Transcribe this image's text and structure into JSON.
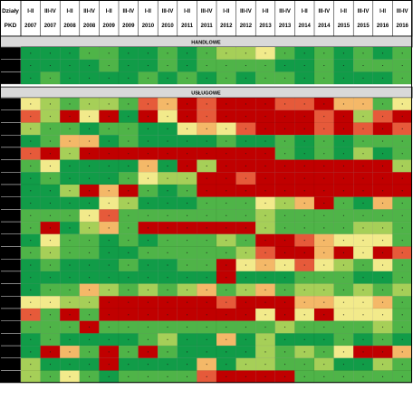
{
  "chart_data": {
    "type": "heatmap",
    "corner_label": [
      "Działy",
      "PKD"
    ],
    "columns": [
      {
        "period": "I-II",
        "year": "2007"
      },
      {
        "period": "III-IV",
        "year": "2007"
      },
      {
        "period": "I-II",
        "year": "2008"
      },
      {
        "period": "III-IV",
        "year": "2008"
      },
      {
        "period": "I-II",
        "year": "2009"
      },
      {
        "period": "III-IV",
        "year": "2009"
      },
      {
        "period": "I-II",
        "year": "2010"
      },
      {
        "period": "III-IV",
        "year": "2010"
      },
      {
        "period": "I-II",
        "year": "2011"
      },
      {
        "period": "III-IV",
        "year": "2011"
      },
      {
        "period": "I-II",
        "year": "2012"
      },
      {
        "period": "III-IV",
        "year": "2012"
      },
      {
        "period": "I-II",
        "year": "2013"
      },
      {
        "period": "III-IV",
        "year": "2013"
      },
      {
        "period": "I-II",
        "year": "2014"
      },
      {
        "period": "III-IV",
        "year": "2014"
      },
      {
        "period": "I-II",
        "year": "2015"
      },
      {
        "period": "III-IV",
        "year": "2015"
      },
      {
        "period": "I-II",
        "year": "2016"
      },
      {
        "period": "III-IV",
        "year": "2016"
      }
    ],
    "color_scale": {
      "levels": [
        0,
        1,
        2,
        3,
        4,
        5,
        6
      ],
      "colors": [
        "#119c48",
        "#4fb448",
        "#a6cf58",
        "#f2ea8b",
        "#f4b868",
        "#e65a3a",
        "#c00000"
      ]
    },
    "sections": [
      {
        "title": "HANDLOWE",
        "rows": [
          [
            0,
            0,
            0,
            1,
            1,
            0,
            0,
            1,
            0,
            1,
            2,
            2,
            3,
            1,
            0,
            1,
            0,
            1,
            0,
            1
          ],
          [
            0,
            0,
            0,
            0,
            1,
            0,
            0,
            1,
            0,
            1,
            1,
            1,
            1,
            0,
            0,
            1,
            0,
            1,
            1,
            1
          ],
          [
            0,
            1,
            0,
            0,
            0,
            0,
            1,
            0,
            1,
            0,
            1,
            0,
            1,
            1,
            0,
            1,
            0,
            0,
            0,
            1
          ]
        ]
      },
      {
        "title": "USŁUGOWE",
        "rows": [
          [
            3,
            2,
            1,
            2,
            2,
            1,
            5,
            4,
            6,
            5,
            6,
            6,
            6,
            5,
            5,
            6,
            4,
            4,
            1,
            3
          ],
          [
            5,
            2,
            6,
            3,
            6,
            0,
            6,
            3,
            6,
            5,
            6,
            6,
            6,
            6,
            6,
            5,
            6,
            2,
            5,
            6
          ],
          [
            2,
            1,
            1,
            0,
            1,
            1,
            0,
            0,
            3,
            4,
            3,
            5,
            6,
            6,
            6,
            5,
            6,
            5,
            6,
            5
          ],
          [
            0,
            1,
            4,
            4,
            0,
            1,
            0,
            0,
            0,
            0,
            1,
            0,
            0,
            1,
            0,
            1,
            0,
            1,
            1,
            1
          ],
          [
            5,
            6,
            2,
            6,
            6,
            6,
            6,
            6,
            6,
            6,
            6,
            6,
            6,
            1,
            0,
            1,
            0,
            2,
            0,
            1
          ],
          [
            1,
            3,
            0,
            0,
            0,
            0,
            4,
            0,
            6,
            2,
            6,
            6,
            6,
            6,
            6,
            6,
            6,
            6,
            6,
            2
          ],
          [
            0,
            1,
            0,
            0,
            0,
            1,
            3,
            2,
            2,
            6,
            6,
            5,
            6,
            6,
            6,
            6,
            6,
            6,
            6,
            6
          ],
          [
            0,
            0,
            2,
            6,
            4,
            6,
            1,
            0,
            1,
            6,
            6,
            6,
            6,
            6,
            6,
            6,
            6,
            6,
            6,
            6
          ],
          [
            0,
            0,
            0,
            0,
            3,
            2,
            0,
            0,
            0,
            1,
            1,
            1,
            3,
            2,
            4,
            6,
            1,
            0,
            4,
            1
          ],
          [
            1,
            1,
            1,
            3,
            5,
            1,
            1,
            1,
            1,
            1,
            1,
            1,
            2,
            1,
            1,
            1,
            1,
            1,
            1,
            1
          ],
          [
            1,
            6,
            0,
            2,
            4,
            1,
            6,
            6,
            6,
            6,
            6,
            6,
            2,
            1,
            1,
            1,
            1,
            2,
            2,
            1
          ],
          [
            0,
            3,
            1,
            1,
            0,
            1,
            0,
            1,
            1,
            1,
            2,
            1,
            6,
            6,
            5,
            4,
            3,
            3,
            3,
            1
          ],
          [
            1,
            2,
            1,
            1,
            0,
            0,
            1,
            1,
            1,
            1,
            1,
            2,
            5,
            6,
            6,
            4,
            6,
            3,
            6,
            5
          ],
          [
            0,
            1,
            0,
            0,
            0,
            1,
            0,
            0,
            1,
            1,
            6,
            3,
            4,
            3,
            5,
            3,
            2,
            1,
            3,
            1
          ],
          [
            0,
            0,
            0,
            0,
            0,
            0,
            0,
            0,
            0,
            0,
            6,
            0,
            0,
            0,
            1,
            1,
            1,
            0,
            0,
            1
          ],
          [
            0,
            1,
            1,
            4,
            2,
            1,
            2,
            1,
            2,
            4,
            1,
            2,
            4,
            1,
            2,
            2,
            1,
            2,
            1,
            2
          ],
          [
            3,
            3,
            2,
            2,
            6,
            6,
            6,
            6,
            6,
            6,
            5,
            6,
            6,
            6,
            4,
            4,
            3,
            3,
            4,
            1
          ],
          [
            5,
            1,
            6,
            1,
            6,
            6,
            6,
            6,
            6,
            6,
            6,
            6,
            3,
            6,
            3,
            6,
            3,
            3,
            3,
            1
          ],
          [
            1,
            1,
            1,
            6,
            1,
            1,
            1,
            1,
            1,
            1,
            1,
            1,
            1,
            2,
            1,
            1,
            1,
            1,
            2,
            1
          ],
          [
            0,
            1,
            0,
            0,
            0,
            0,
            1,
            2,
            0,
            0,
            4,
            0,
            2,
            0,
            0,
            0,
            1,
            0,
            1,
            0
          ],
          [
            0,
            6,
            4,
            1,
            6,
            1,
            6,
            1,
            0,
            0,
            0,
            0,
            2,
            1,
            2,
            1,
            3,
            6,
            6,
            4
          ],
          [
            2,
            0,
            0,
            0,
            6,
            0,
            0,
            0,
            0,
            4,
            0,
            2,
            2,
            1,
            1,
            2,
            0,
            0,
            2,
            1
          ],
          [
            2,
            1,
            3,
            1,
            0,
            1,
            1,
            1,
            1,
            5,
            6,
            6,
            6,
            6,
            1,
            1,
            1,
            1,
            1,
            1
          ]
        ]
      }
    ]
  }
}
